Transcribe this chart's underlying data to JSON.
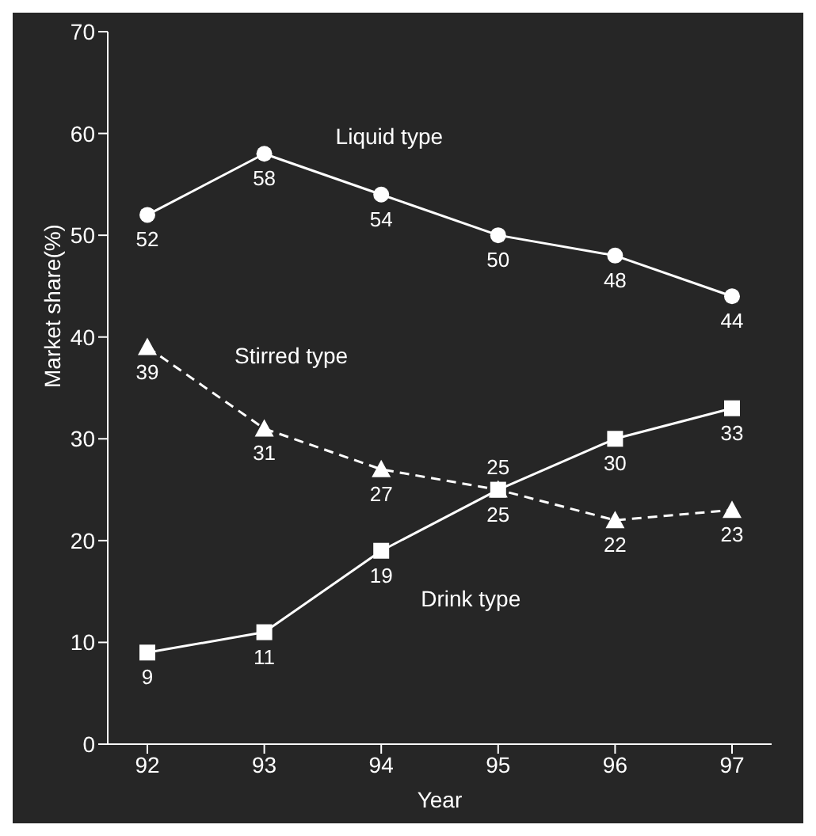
{
  "chart_data": {
    "type": "line",
    "xlabel": "Year",
    "ylabel": "Market share(%)",
    "categories": [
      "92",
      "93",
      "94",
      "95",
      "96",
      "97"
    ],
    "series": [
      {
        "name": "Liquid type",
        "color": "#ffffff",
        "marker": "circle",
        "values": [
          52,
          58,
          54,
          50,
          48,
          44
        ]
      },
      {
        "name": "Stirred type",
        "color": "#ffffff",
        "marker": "triangle",
        "line_style": "dashed",
        "values": [
          39,
          31,
          27,
          25,
          22,
          23
        ]
      },
      {
        "name": "Drink type",
        "color": "#ffffff",
        "marker": "square",
        "values": [
          9,
          11,
          19,
          25,
          30,
          33
        ]
      }
    ],
    "ylim": [
      0,
      70
    ],
    "yticks": [
      0,
      10,
      20,
      30,
      40,
      50,
      60,
      70
    ],
    "data_labels": true,
    "grid": false,
    "legend": false
  }
}
